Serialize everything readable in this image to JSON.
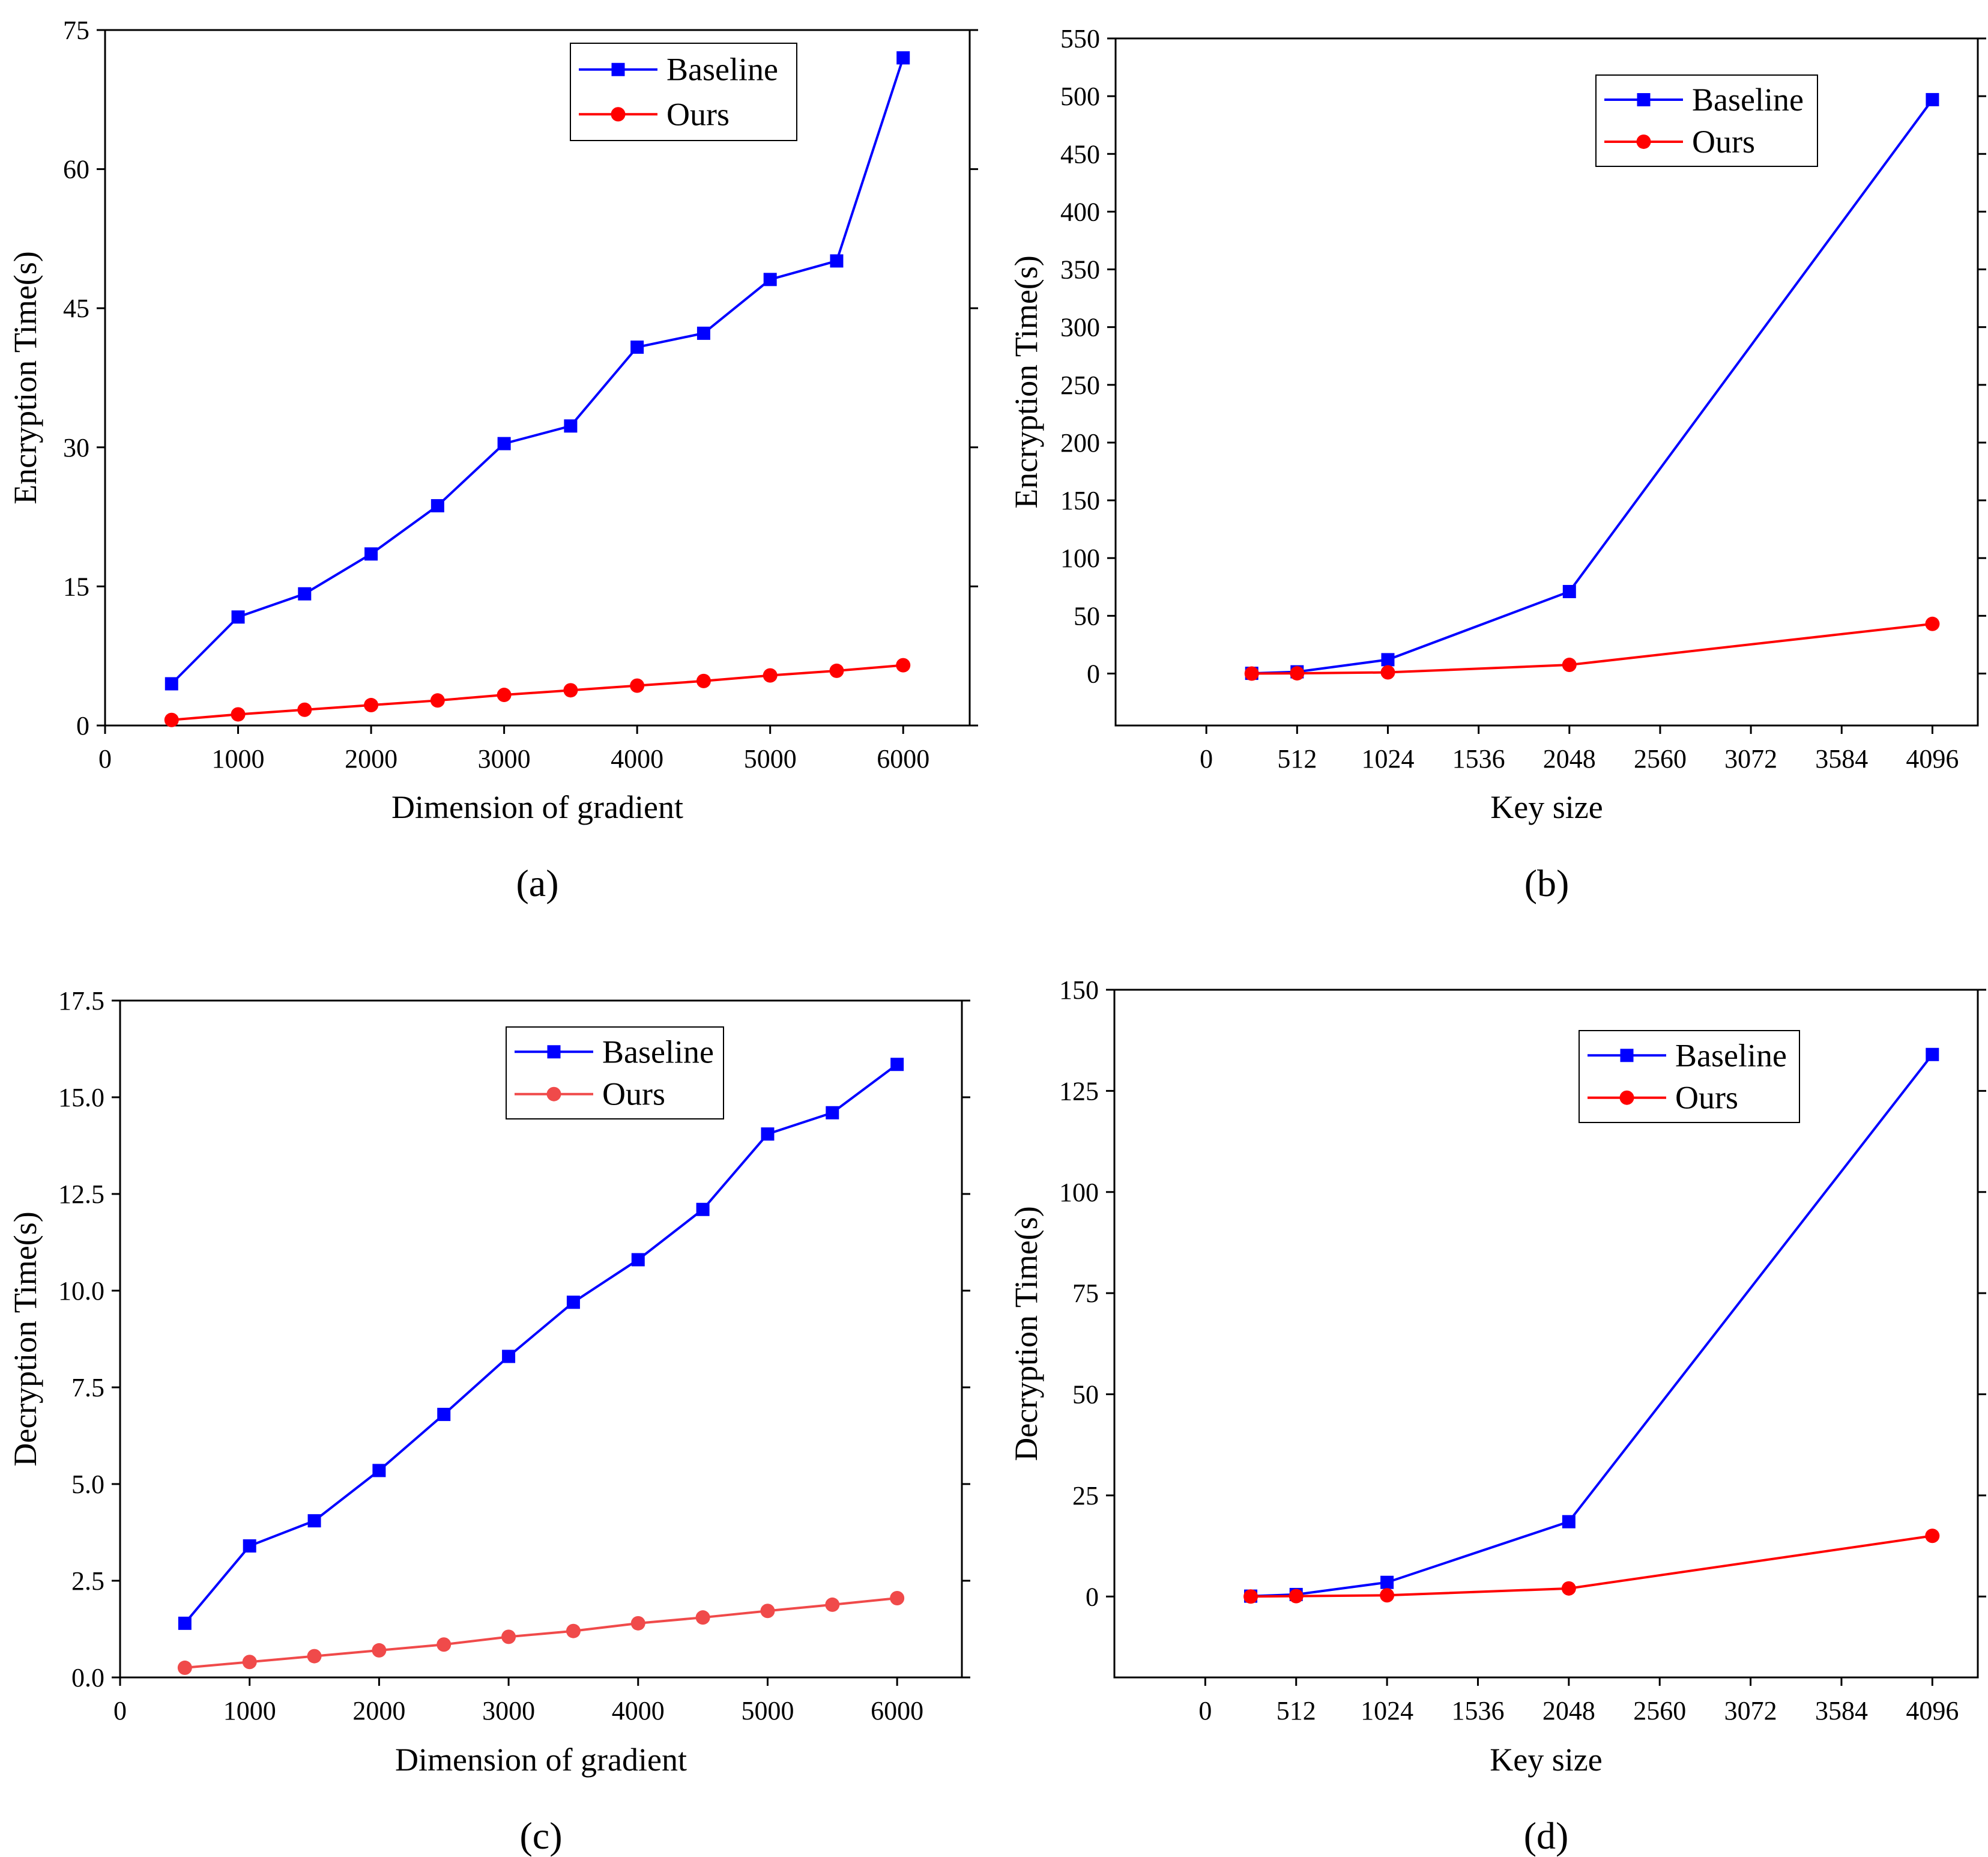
{
  "colors": {
    "baseline": "#0000ff",
    "ours_a": "#ff0000",
    "ours_c": "#f04a4a"
  },
  "chart_data": [
    {
      "type": "line",
      "caption": "(a)",
      "caption_letter": "a",
      "xlabel": "Dimension of gradient",
      "ylabel": "Encryption Time(s)",
      "xlim": [
        0,
        6500
      ],
      "ylim": [
        0,
        75
      ],
      "x_ticks": [
        0,
        1000,
        2000,
        3000,
        4000,
        5000,
        6000
      ],
      "y_ticks": [
        0,
        15,
        30,
        45,
        60,
        75
      ],
      "y_tick_labels": [
        "0",
        "15",
        "30",
        "45",
        "60",
        "75"
      ],
      "legend_position": "top-right",
      "series": [
        {
          "name": "Baseline",
          "marker": "square",
          "color": "#0000ff",
          "x": [
            500,
            1000,
            1500,
            2000,
            2500,
            3000,
            3500,
            4000,
            4500,
            5000,
            5500,
            6000
          ],
          "y": [
            4.5,
            11.7,
            14.2,
            18.5,
            23.7,
            30.4,
            32.3,
            40.8,
            42.3,
            48.1,
            50.1,
            72.0
          ]
        },
        {
          "name": "Ours",
          "marker": "circle",
          "color": "#ff0000",
          "x": [
            500,
            1000,
            1500,
            2000,
            2500,
            3000,
            3500,
            4000,
            4500,
            5000,
            5500,
            6000
          ],
          "y": [
            0.6,
            1.2,
            1.7,
            2.2,
            2.7,
            3.3,
            3.8,
            4.3,
            4.8,
            5.4,
            5.9,
            6.5
          ]
        }
      ]
    },
    {
      "type": "line",
      "caption": "(b)",
      "caption_letter": "b",
      "xlabel": "Key size",
      "ylabel": "Encryption Time(s)",
      "xlim": [
        -512,
        4352
      ],
      "ylim": [
        -45,
        550
      ],
      "x_ticks": [
        0,
        512,
        1024,
        1536,
        2048,
        2560,
        3072,
        3584,
        4096
      ],
      "y_ticks": [
        0,
        50,
        100,
        150,
        200,
        250,
        300,
        350,
        400,
        450,
        500,
        550
      ],
      "y_tick_labels": [
        "0",
        "50",
        "100",
        "150",
        "200",
        "250",
        "300",
        "350",
        "400",
        "450",
        "500",
        "550"
      ],
      "legend_position": "top-right",
      "series": [
        {
          "name": "Baseline",
          "marker": "square",
          "color": "#0000ff",
          "x": [
            256,
            512,
            1024,
            2048,
            4096
          ],
          "y": [
            0.2,
            1.5,
            12,
            71,
            497
          ]
        },
        {
          "name": "Ours",
          "marker": "circle",
          "color": "#ff0000",
          "x": [
            256,
            512,
            1024,
            2048,
            4096
          ],
          "y": [
            0,
            0.2,
            1,
            7.5,
            43
          ]
        }
      ]
    },
    {
      "type": "line",
      "caption": "(c)",
      "caption_letter": "c",
      "xlabel": "Dimension of gradient",
      "ylabel": "Decryption Time(s)",
      "xlim": [
        0,
        6500
      ],
      "ylim": [
        0,
        17.5
      ],
      "x_ticks": [
        0,
        1000,
        2000,
        3000,
        4000,
        5000,
        6000
      ],
      "y_ticks": [
        0,
        2.5,
        5,
        7.5,
        10,
        12.5,
        15,
        17.5
      ],
      "y_tick_labels": [
        "0.0",
        "2.5",
        "5.0",
        "7.5",
        "10.0",
        "12.5",
        "15.0",
        "17.5"
      ],
      "legend_position": "top-right",
      "series": [
        {
          "name": "Baseline",
          "marker": "square",
          "color": "#0000ff",
          "x": [
            500,
            1000,
            1500,
            2000,
            2500,
            3000,
            3500,
            4000,
            4500,
            5000,
            5500,
            6000
          ],
          "y": [
            1.4,
            3.4,
            4.05,
            5.35,
            6.8,
            8.3,
            9.7,
            10.8,
            12.1,
            14.05,
            14.6,
            15.85
          ]
        },
        {
          "name": "Ours",
          "marker": "circle",
          "color": "#f04a4a",
          "x": [
            500,
            1000,
            1500,
            2000,
            2500,
            3000,
            3500,
            4000,
            4500,
            5000,
            5500,
            6000
          ],
          "y": [
            0.25,
            0.4,
            0.55,
            0.7,
            0.85,
            1.05,
            1.2,
            1.4,
            1.55,
            1.72,
            1.88,
            2.05
          ]
        }
      ]
    },
    {
      "type": "line",
      "caption": "(d)",
      "caption_letter": "d",
      "xlabel": "Key size",
      "ylabel": "Decryption Time(s)",
      "xlim": [
        -512,
        4352
      ],
      "ylim": [
        -20,
        150
      ],
      "x_ticks": [
        0,
        512,
        1024,
        1536,
        2048,
        2560,
        3072,
        3584,
        4096
      ],
      "y_ticks": [
        0,
        25,
        50,
        75,
        100,
        125,
        150
      ],
      "y_tick_labels": [
        "0",
        "25",
        "50",
        "75",
        "100",
        "125",
        "150"
      ],
      "legend_position": "top-right",
      "series": [
        {
          "name": "Baseline",
          "marker": "square",
          "color": "#0000ff",
          "x": [
            256,
            512,
            1024,
            2048,
            4096
          ],
          "y": [
            0.1,
            0.5,
            3.5,
            18.5,
            134
          ]
        },
        {
          "name": "Ours",
          "marker": "circle",
          "color": "#ff0000",
          "x": [
            256,
            512,
            1024,
            2048,
            4096
          ],
          "y": [
            0,
            0.1,
            0.3,
            2,
            15
          ]
        }
      ]
    }
  ]
}
